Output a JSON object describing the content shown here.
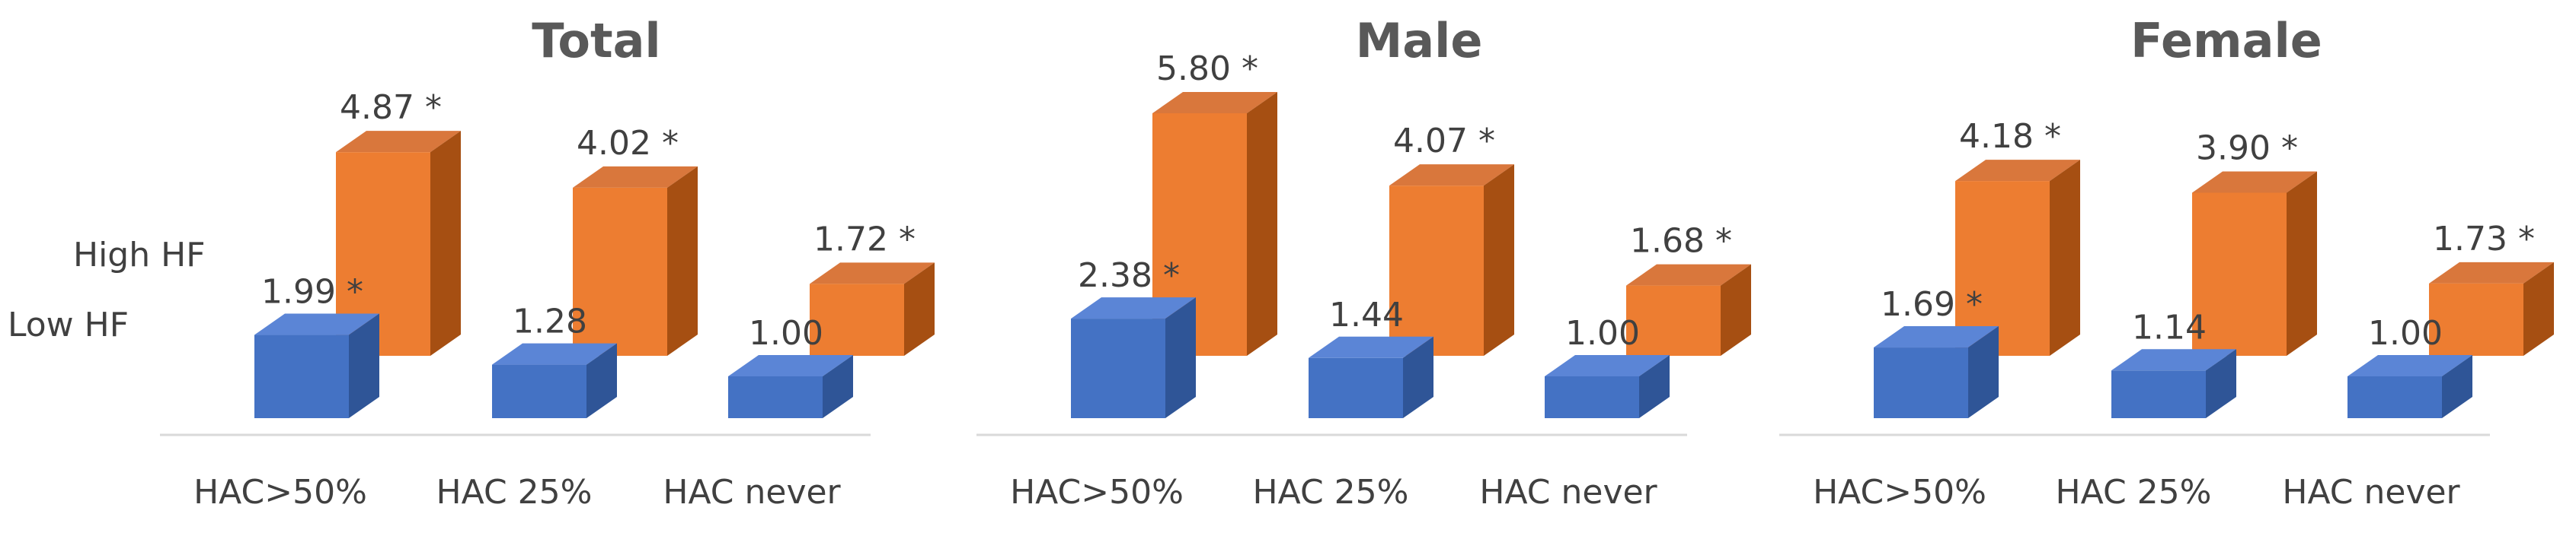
{
  "chart_data": [
    {
      "type": "bar",
      "title": "Total",
      "categories": [
        "HAC>50%",
        "HAC 25%",
        "HAC never"
      ],
      "series_labels": [
        "High HF",
        "Low HF"
      ],
      "series": [
        {
          "name": "Low HF",
          "values": [
            1.99,
            1.28,
            1.0
          ],
          "labels": [
            "1.99 *",
            "1.28",
            "1.00"
          ]
        },
        {
          "name": "High HF",
          "values": [
            4.87,
            4.02,
            1.72
          ],
          "labels": [
            "4.87 *",
            "4.02 *",
            "1.72 *"
          ]
        }
      ],
      "ylim": [
        0,
        6
      ],
      "grid": false
    },
    {
      "type": "bar",
      "title": "Male",
      "categories": [
        "HAC>50%",
        "HAC 25%",
        "HAC never"
      ],
      "series": [
        {
          "name": "Low HF",
          "values": [
            2.38,
            1.44,
            1.0
          ],
          "labels": [
            "2.38 *",
            "1.44",
            "1.00"
          ]
        },
        {
          "name": "High HF",
          "values": [
            5.8,
            4.07,
            1.68
          ],
          "labels": [
            "5.80 *",
            "4.07 *",
            "1.68 *"
          ]
        }
      ],
      "ylim": [
        0,
        6
      ],
      "grid": false
    },
    {
      "type": "bar",
      "title": "Female",
      "categories": [
        "HAC>50%",
        "HAC 25%",
        "HAC never"
      ],
      "series": [
        {
          "name": "Low HF",
          "values": [
            1.69,
            1.14,
            1.0
          ],
          "labels": [
            "1.69 *",
            "1.14",
            "1.00"
          ]
        },
        {
          "name": "High HF",
          "values": [
            4.18,
            3.9,
            1.73
          ],
          "labels": [
            "4.18 *",
            "3.90 *",
            "1.73 *"
          ]
        }
      ],
      "ylim": [
        0,
        6
      ],
      "grid": false
    }
  ],
  "colors": {
    "low_front": "#4472c4",
    "low_top": "#5b85d6",
    "low_side": "#2f5597",
    "high_front": "#ed7d31",
    "high_top": "#d9773c",
    "high_side": "#a64f12",
    "text": "#404040",
    "title": "#595959",
    "axis": "#d9d9d9"
  }
}
